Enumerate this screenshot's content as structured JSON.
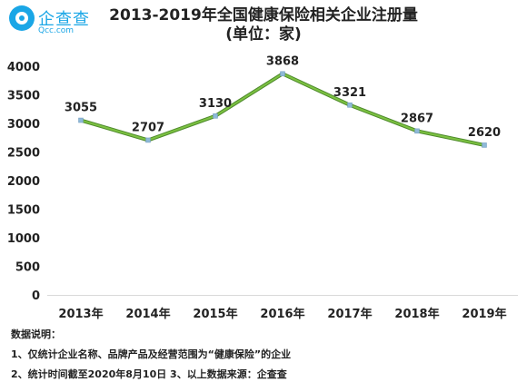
{
  "logo": {
    "name": "企查查",
    "domain": "Qcc.com"
  },
  "chart_data": {
    "type": "line",
    "title": "2013-2019年全国健康保险相关企业注册量",
    "subtitle": "(单位：家)",
    "categories": [
      "2013年",
      "2014年",
      "2015年",
      "2016年",
      "2017年",
      "2018年",
      "2019年"
    ],
    "values": [
      3055,
      2707,
      3130,
      3868,
      3321,
      2867,
      2620
    ],
    "ylim": [
      0,
      4000
    ],
    "yticks": [
      "0",
      "500",
      "1000",
      "1500",
      "2000",
      "2500",
      "3000",
      "3500",
      "4000"
    ],
    "xlabel": "",
    "ylabel": "",
    "grid": false,
    "line_color": "#7dc242"
  },
  "notes": {
    "heading": "数据说明：",
    "line1": "1、仅统计企业名称、品牌产品及经营范围为“健康保险”的企业",
    "line2": "2、统计时间截至2020年8月10日 3、以上数据来源：企查查"
  }
}
